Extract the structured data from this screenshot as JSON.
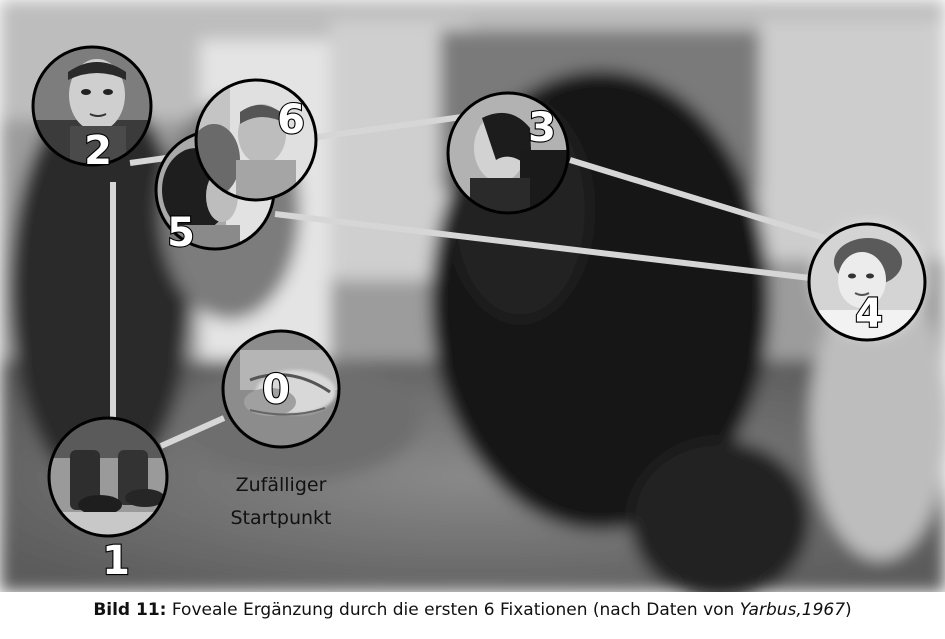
{
  "figure": {
    "caption_label": "Bild 11:",
    "caption_text": " Foveale Ergänzung durch die ersten 6 Fixationen (nach Daten von ",
    "caption_citation": "Yarbus,1967",
    "caption_end": ")",
    "start_note_line1": "Zufälliger",
    "start_note_line2": "Startpunkt"
  },
  "fixations": [
    {
      "label": "0",
      "region": "hands"
    },
    {
      "label": "1",
      "region": "feet"
    },
    {
      "label": "2",
      "region": "face"
    },
    {
      "label": "3",
      "region": "face"
    },
    {
      "label": "4",
      "region": "face"
    },
    {
      "label": "5",
      "region": "head"
    },
    {
      "label": "6",
      "region": "face"
    }
  ],
  "colors": {
    "background_dark": "#3a3a3a",
    "path_line": "#d6d6d6",
    "circle_stroke": "#000000",
    "number_fill": "#ffffff"
  }
}
